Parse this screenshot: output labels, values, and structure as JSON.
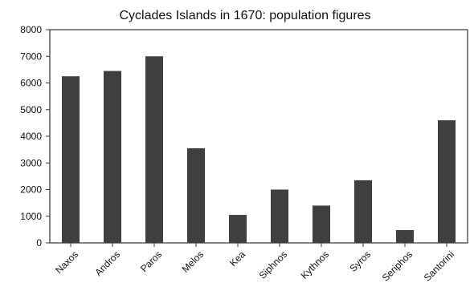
{
  "chart_data": {
    "type": "bar",
    "title": "Cyclades Islands in 1670: population figures",
    "categories": [
      "Naxos",
      "Andros",
      "Paros",
      "Melos",
      "Kea",
      "Siphnos",
      "Kythnos",
      "Syros",
      "Seriphos",
      "Santorini"
    ],
    "values": [
      6250,
      6450,
      7000,
      3550,
      1050,
      2000,
      1400,
      2350,
      480,
      4600
    ],
    "yticks": [
      "0",
      "1000",
      "2000",
      "3000",
      "4000",
      "5000",
      "6000",
      "7000",
      "8000"
    ],
    "ylim": [
      0,
      8000
    ],
    "xlabel": "",
    "ylabel": "",
    "grid": false,
    "legend": "none",
    "colors": {
      "bar": "#3f3f3f",
      "axis": "#333333",
      "text": "#111111"
    }
  }
}
